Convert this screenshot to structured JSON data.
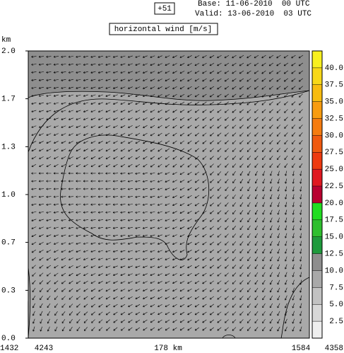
{
  "chart_data": {
    "type": "wind-section",
    "title": "horizontal wind [m/s]",
    "forecast_label": "+51",
    "base": "Base: 11-06-2010  00 UTC",
    "valid": "Valid: 13-06-2010  03 UTC",
    "y_label": "km",
    "ylim": [
      0,
      2.0
    ],
    "yticks": [
      {
        "value": 0,
        "label": "0.0"
      },
      {
        "value": 0.333,
        "label": "0.3"
      },
      {
        "value": 0.667,
        "label": "0.7"
      },
      {
        "value": 1.0,
        "label": "1.0"
      },
      {
        "value": 1.333,
        "label": "1.3"
      },
      {
        "value": 1.667,
        "label": "1.7"
      },
      {
        "value": 2.0,
        "label": "2.0"
      }
    ],
    "x_labels": [
      "1432",
      "4243",
      "178 km",
      "1584",
      "4358"
    ],
    "colorbar": {
      "clim": [
        0,
        42.5
      ],
      "ticks": [
        2.5,
        {
          "value": 5,
          "label": "5.0"
        },
        7.5,
        {
          "value": 10,
          "label": "10.0"
        },
        12.5,
        {
          "value": 15,
          "label": "15.0"
        },
        17.5,
        {
          "value": 20,
          "label": "20.0"
        },
        22.5,
        {
          "value": 25,
          "label": "25.0"
        },
        27.5,
        {
          "value": 30,
          "label": "30.0"
        },
        32.5,
        {
          "value": 35,
          "label": "35.0"
        },
        37.5,
        {
          "value": 40,
          "label": "40.0"
        }
      ],
      "colors": [
        "#eeeeee",
        "#d8d8d8",
        "#c2c2c2",
        "#a9a9a9",
        "#8e8e8e",
        "#1e9a3c",
        "#2fbf2f",
        "#22dd22",
        "#b80030",
        "#e01820",
        "#ee3a10",
        "#f05a10",
        "#f57c10",
        "#f89c10",
        "#f8bc10",
        "#f8d818",
        "#f8f020"
      ]
    }
  }
}
